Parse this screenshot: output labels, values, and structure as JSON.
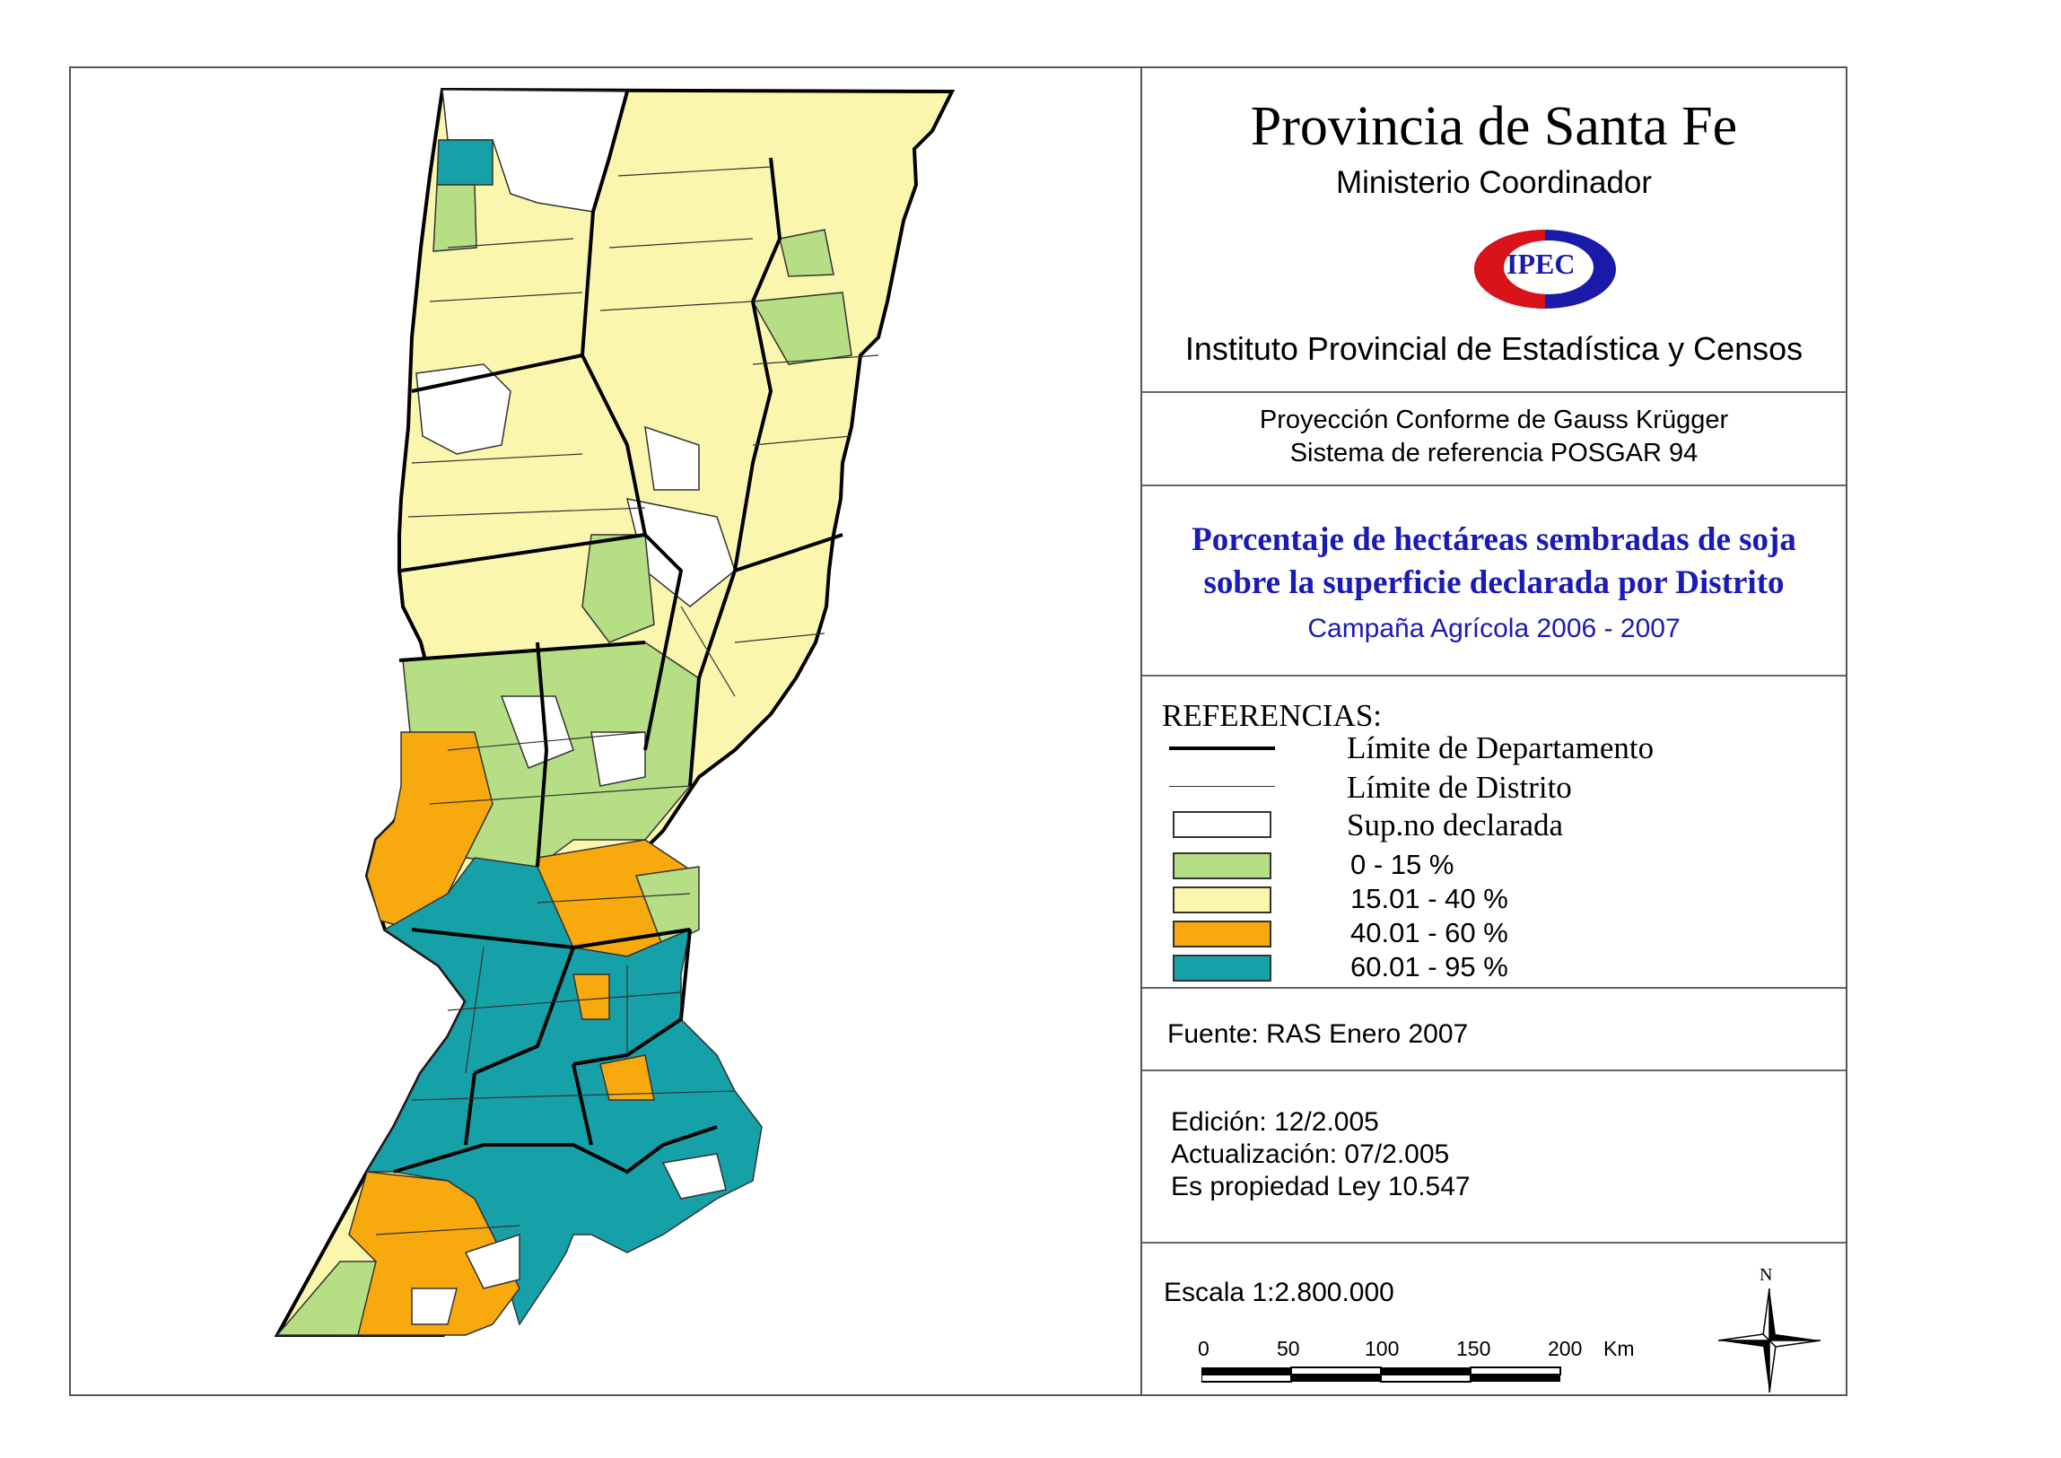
{
  "header": {
    "province": "Provincia de Santa Fe",
    "ministry": "Ministerio Coordinador",
    "logo_text": "IPEC",
    "institute": "Instituto Provincial de Estadística y Censos"
  },
  "projection": {
    "line1": "Proyección Conforme de Gauss Krügger",
    "line2": "Sistema de referencia POSGAR 94"
  },
  "title": {
    "line1": "Porcentaje de hectáreas sembradas de soja",
    "line2": "sobre la superficie declarada por Distrito",
    "subtitle": "Campaña Agrícola 2006 - 2007"
  },
  "legend": {
    "heading": "REFERENCIAS:",
    "dept_limit": "Límite de Departamento",
    "district_limit": "Límite de Distrito",
    "classes": [
      {
        "label": "Sup.no declarada",
        "color": "#ffffff"
      },
      {
        "label": "0 - 15 %",
        "color": "#b5de85"
      },
      {
        "label": "15.01 - 40 %",
        "color": "#fbf6ae"
      },
      {
        "label": "40.01 - 60 %",
        "color": "#f7a90d"
      },
      {
        "label": "60.01 - 95 %",
        "color": "#16a0a8"
      }
    ]
  },
  "source": {
    "text": "Fuente:  RAS Enero 2007"
  },
  "edition": {
    "line1": "Edición:  12/2.005",
    "line2": "Actualización:  07/2.005",
    "line3": "Es propiedad Ley 10.547"
  },
  "scale": {
    "text": "Escala 1:2.800.000",
    "ticks": [
      "0",
      "50",
      "100",
      "150",
      "200"
    ],
    "unit": "Km"
  },
  "north": {
    "label": "N"
  }
}
